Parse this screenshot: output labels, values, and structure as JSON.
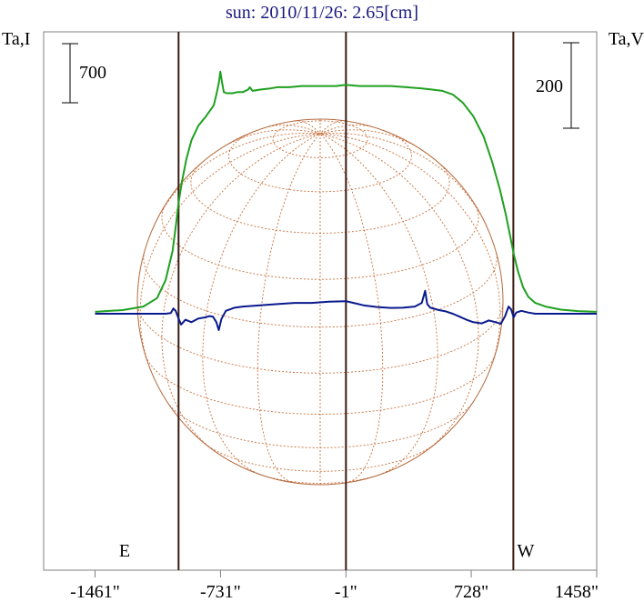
{
  "chart_data": {
    "type": "line",
    "title": "sun: 2010/11/26: 2.65[cm]",
    "y_left_label": "Ta,I",
    "y_right_label": "Ta,V",
    "scale_bar_left": "700",
    "scale_bar_right": "200",
    "limb_labels": {
      "east": "E",
      "west": "W"
    },
    "xlim": [
      -1760,
      1458
    ],
    "x_tick_values": [
      -1461,
      -731,
      -1,
      728,
      1458
    ],
    "x_tick_labels": [
      "-1461\"",
      "-731\"",
      "-1\"",
      "728\"",
      "1458\""
    ],
    "vertical_markers": [
      -975,
      -1,
      973
    ],
    "series": [
      {
        "key": "I",
        "color": "#1fa01f",
        "points": [
          [
            -1461,
            0.08
          ],
          [
            -1300,
            0.15
          ],
          [
            -1180,
            0.3
          ],
          [
            -1100,
            0.65
          ],
          [
            -1050,
            1.4
          ],
          [
            -1010,
            2.6
          ],
          [
            -990,
            3.7
          ],
          [
            -975,
            4.6
          ],
          [
            -955,
            5.5
          ],
          [
            -930,
            6.4
          ],
          [
            -900,
            7.2
          ],
          [
            -860,
            7.8
          ],
          [
            -820,
            8.15
          ],
          [
            -790,
            8.45
          ],
          [
            -770,
            8.65
          ],
          [
            -755,
            9.1
          ],
          [
            -740,
            9.6
          ],
          [
            -732,
            10.05
          ],
          [
            -724,
            9.7
          ],
          [
            -712,
            9.2
          ],
          [
            -695,
            9.15
          ],
          [
            -660,
            9.15
          ],
          [
            -630,
            9.2
          ],
          [
            -600,
            9.2
          ],
          [
            -570,
            9.3
          ],
          [
            -560,
            9.4
          ],
          [
            -545,
            9.25
          ],
          [
            -500,
            9.3
          ],
          [
            -440,
            9.35
          ],
          [
            -400,
            9.4
          ],
          [
            -330,
            9.4
          ],
          [
            -260,
            9.45
          ],
          [
            -160,
            9.45
          ],
          [
            -60,
            9.45
          ],
          [
            0,
            9.5
          ],
          [
            80,
            9.45
          ],
          [
            170,
            9.45
          ],
          [
            260,
            9.45
          ],
          [
            350,
            9.4
          ],
          [
            440,
            9.35
          ],
          [
            500,
            9.3
          ],
          [
            560,
            9.25
          ],
          [
            620,
            9.1
          ],
          [
            680,
            8.75
          ],
          [
            740,
            8.2
          ],
          [
            800,
            7.35
          ],
          [
            850,
            6.3
          ],
          [
            895,
            5.15
          ],
          [
            930,
            4.1
          ],
          [
            955,
            3.2
          ],
          [
            975,
            2.5
          ],
          [
            1000,
            1.75
          ],
          [
            1030,
            1.1
          ],
          [
            1060,
            0.7
          ],
          [
            1100,
            0.45
          ],
          [
            1160,
            0.3
          ],
          [
            1250,
            0.17
          ],
          [
            1350,
            0.11
          ],
          [
            1458,
            0.08
          ]
        ]
      },
      {
        "key": "V",
        "color": "#0a1a8c",
        "points": [
          [
            -1461,
            0.0
          ],
          [
            -1050,
            0.0
          ],
          [
            -1020,
            0.03
          ],
          [
            -1005,
            0.22
          ],
          [
            -992,
            0.12
          ],
          [
            -975,
            -0.2
          ],
          [
            -960,
            -0.45
          ],
          [
            -935,
            -0.25
          ],
          [
            -900,
            -0.35
          ],
          [
            -860,
            -0.2
          ],
          [
            -820,
            -0.15
          ],
          [
            -795,
            -0.1
          ],
          [
            -775,
            -0.12
          ],
          [
            -755,
            -0.35
          ],
          [
            -741,
            -0.68
          ],
          [
            -726,
            -0.22
          ],
          [
            -700,
            0.12
          ],
          [
            -650,
            0.25
          ],
          [
            -600,
            0.3
          ],
          [
            -500,
            0.35
          ],
          [
            -400,
            0.4
          ],
          [
            -300,
            0.45
          ],
          [
            -200,
            0.45
          ],
          [
            -100,
            0.5
          ],
          [
            0,
            0.52
          ],
          [
            60,
            0.42
          ],
          [
            100,
            0.35
          ],
          [
            180,
            0.28
          ],
          [
            260,
            0.24
          ],
          [
            330,
            0.25
          ],
          [
            400,
            0.3
          ],
          [
            440,
            0.45
          ],
          [
            460,
            0.95
          ],
          [
            472,
            0.4
          ],
          [
            490,
            0.25
          ],
          [
            540,
            0.15
          ],
          [
            580,
            0.1
          ],
          [
            620,
            0.0
          ],
          [
            660,
            -0.12
          ],
          [
            700,
            -0.25
          ],
          [
            740,
            -0.35
          ],
          [
            790,
            -0.4
          ],
          [
            830,
            -0.28
          ],
          [
            870,
            -0.35
          ],
          [
            900,
            -0.42
          ],
          [
            925,
            -0.1
          ],
          [
            945,
            0.3
          ],
          [
            960,
            0.18
          ],
          [
            975,
            -0.15
          ],
          [
            990,
            0.05
          ],
          [
            1020,
            0.12
          ],
          [
            1060,
            0.05
          ],
          [
            1100,
            0.0
          ],
          [
            1458,
            0.0
          ]
        ]
      }
    ]
  }
}
